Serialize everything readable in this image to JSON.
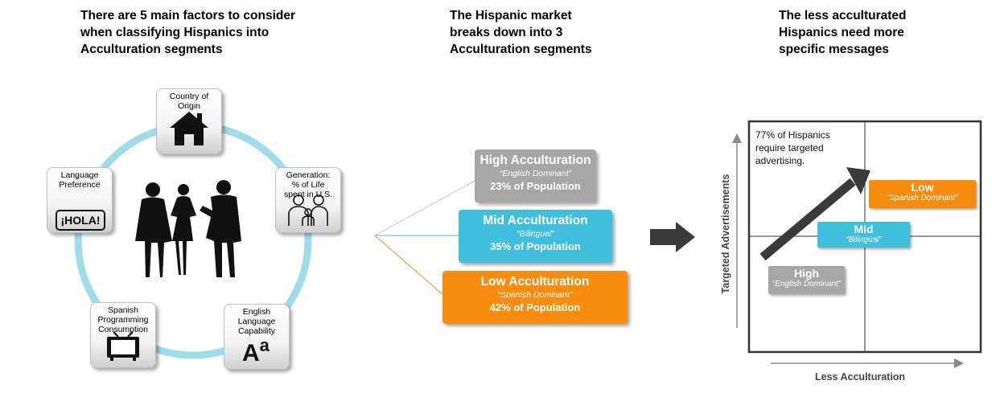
{
  "headings": {
    "left": [
      "There are 5 main factors to consider",
      "when classifying Hispanics into",
      "Acculturation segments"
    ],
    "center": [
      "The Hispanic market",
      "breaks down into 3",
      "Acculturation segments"
    ],
    "right": [
      "The less acculturated",
      "Hispanics need more",
      "specific messages"
    ]
  },
  "factors": [
    {
      "label": [
        "Country of",
        "Origin"
      ],
      "icon": "house-icon"
    },
    {
      "label": [
        "Generation:",
        "% of Life",
        "spent in U.S."
      ],
      "icon": "family-icon"
    },
    {
      "label": [
        "English",
        "Language",
        "Capability"
      ],
      "icon": "letters-icon"
    },
    {
      "label": [
        "Spanish",
        "Programming",
        "Consumption"
      ],
      "icon": "tv-icon"
    },
    {
      "label": [
        "Language",
        "Preference"
      ],
      "icon": "hola-icon"
    }
  ],
  "hola_text": "¡HOLA!",
  "letters_text": [
    "A",
    "a"
  ],
  "segments": [
    {
      "title": "High Acculturation",
      "subtitle": "“English Dominant”",
      "population": "23% of Population",
      "color": "#a6a6a6"
    },
    {
      "title": "Mid Acculturation",
      "subtitle": "“Bilingual”",
      "population": "35% of Population",
      "color": "#3fbfdc"
    },
    {
      "title": "Low Acculturation",
      "subtitle": "“Spanish Dominant”",
      "population": "42% of Population",
      "color": "#f78c0f"
    }
  ],
  "matrix": {
    "ylabel": "Targeted Advertisements",
    "xlabel": "Less Acculturation",
    "note": [
      "77% of Hispanics",
      "require targeted",
      "advertising."
    ],
    "boxes": [
      {
        "title": "High",
        "subtitle": "“English Dominant”",
        "color": "#a6a6a6"
      },
      {
        "title": "Mid",
        "subtitle": "“Bilingual”",
        "color": "#3fbfdc"
      },
      {
        "title": "Low",
        "subtitle": "“Spanish Dominant”",
        "color": "#f78c0f"
      }
    ]
  }
}
